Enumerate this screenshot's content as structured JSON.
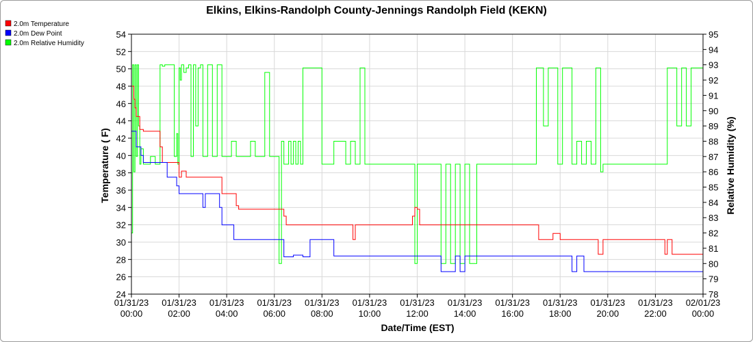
{
  "chart_data": {
    "type": "line",
    "title": "Elkins, Elkins-Randolph County-Jennings Randolph Field (KEKN)",
    "xlabel": "Date/Time (EST)",
    "ylabel_left": "Temperature ( F)",
    "ylabel_right": "Relative Humidity (%)",
    "xlim_hours": [
      0,
      24
    ],
    "ylim_left": [
      24,
      54
    ],
    "ylim_right": [
      78,
      95
    ],
    "grid": true,
    "legend_position": "top-left",
    "x_ticks": [
      {
        "hour": 0,
        "date": "01/31/23",
        "time": "00:00"
      },
      {
        "hour": 2,
        "date": "01/31/23",
        "time": "02:00"
      },
      {
        "hour": 4,
        "date": "01/31/23",
        "time": "04:00"
      },
      {
        "hour": 6,
        "date": "01/31/23",
        "time": "06:00"
      },
      {
        "hour": 8,
        "date": "01/31/23",
        "time": "08:00"
      },
      {
        "hour": 10,
        "date": "01/31/23",
        "time": "10:00"
      },
      {
        "hour": 12,
        "date": "01/31/23",
        "time": "12:00"
      },
      {
        "hour": 14,
        "date": "01/31/23",
        "time": "14:00"
      },
      {
        "hour": 16,
        "date": "01/31/23",
        "time": "16:00"
      },
      {
        "hour": 18,
        "date": "01/31/23",
        "time": "18:00"
      },
      {
        "hour": 20,
        "date": "01/31/23",
        "time": "20:00"
      },
      {
        "hour": 22,
        "date": "01/31/23",
        "time": "22:00"
      },
      {
        "hour": 24,
        "date": "02/01/23",
        "time": "00:00"
      }
    ],
    "left_ticks": [
      24,
      26,
      28,
      30,
      32,
      34,
      36,
      38,
      40,
      42,
      44,
      46,
      48,
      50,
      52,
      54
    ],
    "right_ticks": [
      78,
      79,
      80,
      81,
      82,
      83,
      84,
      85,
      86,
      87,
      88,
      89,
      90,
      91,
      92,
      93,
      94,
      95
    ],
    "series": [
      {
        "name": "2.0m Temperature",
        "axis": "left",
        "color": "#ff0000",
        "x": [
          0.0,
          0.1,
          0.15,
          0.2,
          0.3,
          0.35,
          0.5,
          0.6,
          0.9,
          1.0,
          1.2,
          1.3,
          1.5,
          1.6,
          1.9,
          2.0,
          2.1,
          2.3,
          2.5,
          2.6,
          2.9,
          3.0,
          3.3,
          3.5,
          3.6,
          3.8,
          4.0,
          4.2,
          4.4,
          4.5,
          4.8,
          5.0,
          5.2,
          5.5,
          5.6,
          5.9,
          6.1,
          6.3,
          6.4,
          6.5,
          7.0,
          7.5,
          8.0,
          8.5,
          9.0,
          9.2,
          9.3,
          9.4,
          9.5,
          10.0,
          10.5,
          11.0,
          11.5,
          11.8,
          11.9,
          12.0,
          12.1,
          12.5,
          13.0,
          14.0,
          15.0,
          16.0,
          16.5,
          17.0,
          17.1,
          17.5,
          17.6,
          17.7,
          18.0,
          18.5,
          19.0,
          19.5,
          19.6,
          19.8,
          20.0,
          20.5,
          21.0,
          21.5,
          22.0,
          22.2,
          22.3,
          22.4,
          22.5,
          22.6,
          22.7,
          22.8,
          23.0,
          23.2,
          23.5,
          23.8,
          24.0
        ],
        "values": [
          48.0,
          46.5,
          45.5,
          44.5,
          44.5,
          43.0,
          42.8,
          42.8,
          42.8,
          42.8,
          41.0,
          39.2,
          39.2,
          39.2,
          39.2,
          37.5,
          38.2,
          37.5,
          37.5,
          37.5,
          37.5,
          37.5,
          37.5,
          37.5,
          37.5,
          35.6,
          35.6,
          35.6,
          34.2,
          33.8,
          33.8,
          33.8,
          33.8,
          33.8,
          33.8,
          33.8,
          33.8,
          33.8,
          33.0,
          32.0,
          32.0,
          32.0,
          32.0,
          32.0,
          32.0,
          32.0,
          30.3,
          32.0,
          32.0,
          32.0,
          32.0,
          32.0,
          32.0,
          33.0,
          34.0,
          33.8,
          32.0,
          32.0,
          32.0,
          32.0,
          32.0,
          32.0,
          32.0,
          32.0,
          30.3,
          30.3,
          30.3,
          31.0,
          30.3,
          30.3,
          30.3,
          30.3,
          28.6,
          30.3,
          30.3,
          30.3,
          30.3,
          30.3,
          30.3,
          30.3,
          30.3,
          28.6,
          30.3,
          30.3,
          28.6,
          28.6,
          28.6,
          28.6,
          28.6,
          28.6,
          28.6
        ]
      },
      {
        "name": "2.0m Dew Point",
        "axis": "left",
        "color": "#0000ff",
        "x": [
          0.0,
          0.1,
          0.2,
          0.3,
          0.4,
          0.5,
          0.6,
          1.0,
          1.4,
          1.5,
          1.7,
          1.9,
          2.0,
          2.1,
          2.2,
          2.5,
          2.7,
          3.0,
          3.1,
          3.3,
          3.5,
          3.7,
          3.8,
          3.9,
          4.0,
          4.3,
          4.5,
          4.8,
          5.0,
          5.5,
          5.7,
          6.0,
          6.2,
          6.4,
          6.5,
          6.8,
          7.0,
          7.2,
          7.5,
          8.0,
          8.5,
          9.0,
          9.5,
          10.0,
          11.0,
          11.5,
          11.8,
          11.9,
          12.0,
          12.5,
          13.0,
          13.5,
          13.6,
          13.8,
          14.0,
          14.5,
          15.0,
          16.0,
          17.0,
          17.5,
          18.0,
          18.2,
          18.5,
          18.7,
          19.0,
          19.3,
          19.8,
          20.0,
          20.5,
          21.0,
          21.5,
          22.0,
          22.5,
          23.0,
          23.2,
          23.5,
          23.8,
          24.0
        ],
        "values": [
          42.8,
          42.8,
          41.0,
          41.0,
          40.0,
          39.2,
          39.2,
          39.2,
          39.2,
          37.5,
          37.5,
          36.5,
          35.6,
          35.6,
          35.6,
          35.6,
          35.6,
          34.0,
          35.6,
          35.6,
          35.6,
          34.0,
          32.0,
          32.0,
          32.0,
          30.3,
          30.3,
          30.3,
          30.3,
          30.3,
          30.3,
          30.3,
          30.3,
          28.3,
          28.3,
          28.5,
          28.5,
          28.3,
          30.3,
          30.3,
          28.4,
          28.4,
          28.4,
          28.4,
          28.4,
          28.4,
          28.4,
          28.4,
          28.4,
          28.4,
          26.6,
          26.6,
          28.4,
          26.6,
          28.4,
          28.4,
          28.4,
          28.4,
          28.4,
          28.4,
          28.4,
          28.4,
          26.6,
          28.4,
          26.6,
          26.6,
          26.6,
          26.6,
          26.6,
          26.6,
          26.6,
          26.6,
          26.6,
          26.6,
          26.6,
          26.6,
          26.6,
          26.6
        ]
      },
      {
        "name": "2.0m Relative Humidity",
        "axis": "right",
        "color": "#00ff00",
        "x": [
          0.0,
          0.05,
          0.1,
          0.15,
          0.2,
          0.25,
          0.3,
          0.35,
          0.4,
          0.5,
          0.6,
          0.8,
          1.0,
          1.2,
          1.3,
          1.4,
          1.6,
          1.8,
          1.9,
          1.95,
          2.0,
          2.05,
          2.1,
          2.2,
          2.3,
          2.4,
          2.5,
          2.6,
          2.7,
          2.8,
          2.9,
          3.0,
          3.2,
          3.4,
          3.6,
          3.8,
          4.0,
          4.2,
          4.4,
          4.6,
          4.8,
          5.0,
          5.2,
          5.4,
          5.6,
          5.8,
          6.0,
          6.1,
          6.2,
          6.3,
          6.4,
          6.5,
          6.6,
          6.7,
          6.8,
          6.9,
          7.0,
          7.1,
          7.2,
          7.4,
          7.6,
          7.8,
          8.0,
          8.2,
          8.5,
          9.0,
          9.2,
          9.4,
          9.6,
          9.8,
          10.0,
          10.5,
          11.0,
          11.5,
          11.8,
          11.9,
          12.0,
          12.1,
          12.2,
          12.5,
          13.0,
          13.2,
          13.4,
          13.6,
          13.8,
          14.0,
          14.2,
          14.5,
          15.0,
          15.5,
          16.0,
          16.5,
          17.0,
          17.1,
          17.3,
          17.5,
          17.7,
          17.9,
          18.1,
          18.3,
          18.5,
          18.7,
          18.9,
          19.1,
          19.3,
          19.5,
          19.7,
          19.8,
          20.0,
          20.5,
          21.0,
          21.5,
          22.0,
          22.3,
          22.5,
          22.7,
          22.9,
          23.1,
          23.3,
          23.5,
          23.7,
          23.9,
          24.0
        ],
        "values": [
          82.0,
          93.0,
          86.0,
          93.0,
          87.0,
          93.0,
          89.0,
          86.5,
          87.5,
          86.5,
          86.5,
          87.0,
          86.5,
          93.0,
          92.9,
          93.0,
          93.0,
          87.0,
          88.5,
          86.5,
          92.8,
          92.0,
          93.0,
          92.5,
          92.8,
          93.0,
          87.0,
          93.0,
          89.0,
          92.8,
          93.0,
          87.0,
          93.0,
          87.0,
          93.0,
          87.0,
          87.0,
          88.0,
          87.0,
          87.0,
          87.0,
          88.0,
          87.0,
          87.0,
          92.5,
          87.0,
          87.0,
          87.0,
          80.0,
          88.0,
          86.5,
          86.5,
          88.0,
          86.5,
          88.0,
          86.5,
          88.0,
          86.5,
          92.8,
          92.8,
          92.8,
          92.8,
          86.5,
          86.5,
          88.0,
          86.5,
          88.0,
          86.5,
          92.8,
          86.5,
          86.5,
          86.5,
          86.5,
          86.5,
          86.5,
          80.0,
          86.5,
          86.5,
          86.5,
          86.5,
          80.0,
          86.5,
          80.0,
          86.5,
          80.0,
          86.5,
          80.0,
          86.5,
          86.5,
          86.5,
          86.5,
          86.5,
          92.8,
          92.8,
          89.0,
          92.8,
          92.8,
          86.5,
          92.8,
          92.8,
          86.5,
          88.0,
          86.5,
          88.0,
          86.5,
          92.8,
          86.0,
          86.5,
          86.5,
          86.5,
          86.5,
          86.5,
          86.5,
          86.5,
          92.8,
          92.8,
          89.0,
          92.8,
          89.0,
          92.8,
          92.8,
          92.8,
          92.8
        ]
      }
    ]
  }
}
